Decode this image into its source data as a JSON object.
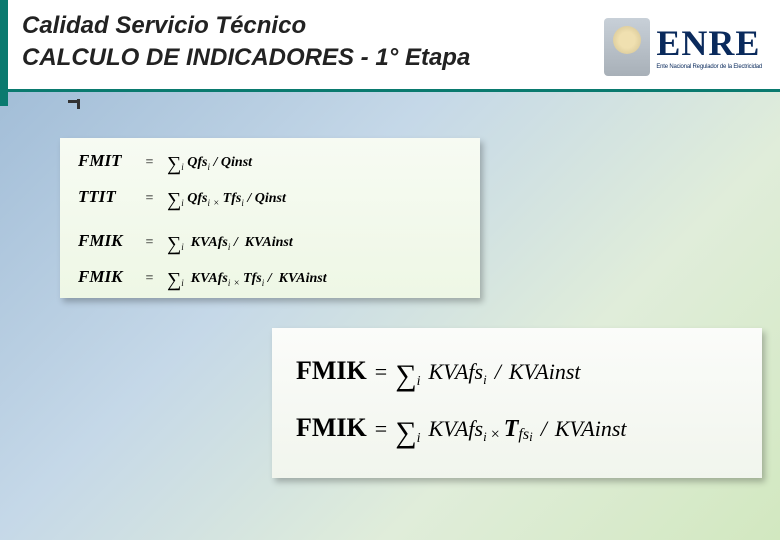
{
  "header": {
    "line1": "Calidad Servicio Técnico",
    "line2": "CALCULO DE INDICADORES - 1° Etapa"
  },
  "logo": {
    "text": "ENRE",
    "subtitle": "Ente Nacional Regulador de la Electricidad"
  },
  "box1": {
    "background_gradient": [
      "#f7fbf3",
      "#eef7e5"
    ],
    "formulas": [
      {
        "lhs": "FMIT",
        "op": "=",
        "sum_sub": "i",
        "terms": "Qfs",
        "sub": "i",
        "div": "/",
        "rhs": "Qinst"
      },
      {
        "lhs": "TTIT",
        "op": "=",
        "sum_sub": "i",
        "terms": "Qfs",
        "sub": "i",
        "mul": "×",
        "t": "Tfs",
        "tsub": "i",
        "div": "/",
        "rhs": "Qinst"
      },
      {
        "lhs": "FMIK",
        "op": "=",
        "sum_sub": "i",
        "terms": "KVAfs",
        "sub": "i",
        "div": "/",
        "rhs": "KVAinst"
      },
      {
        "lhs": "FMIK",
        "op": "=",
        "sum_sub": "i",
        "terms": "KVAfs",
        "sub": "i",
        "mul": "×",
        "t": "Tfs",
        "tsub": "i",
        "div": "/",
        "rhs": "KVAinst"
      }
    ]
  },
  "box2": {
    "background_gradient": [
      "#fbfcfa",
      "#f1f5ed"
    ],
    "formulas": [
      {
        "lhs": "FMIK",
        "eq": "=",
        "sum_sub": "i",
        "terms": "KVAfs",
        "sub": "i",
        "div": "/",
        "rhs": "KVAinst"
      },
      {
        "lhs": "FMIK",
        "eq": "=",
        "sum_sub": "i",
        "terms": "KVAfs",
        "sub": "i",
        "mul": "×",
        "t": "T",
        "tsuf": "fs",
        "tsub": "i",
        "div": "/",
        "rhs": "KVAinst"
      }
    ]
  },
  "colors": {
    "teal": "#0a7a6f",
    "navy": "#0a2a5c",
    "bg_tl": "#9bb8d4",
    "bg_br": "#d2e8c0"
  }
}
